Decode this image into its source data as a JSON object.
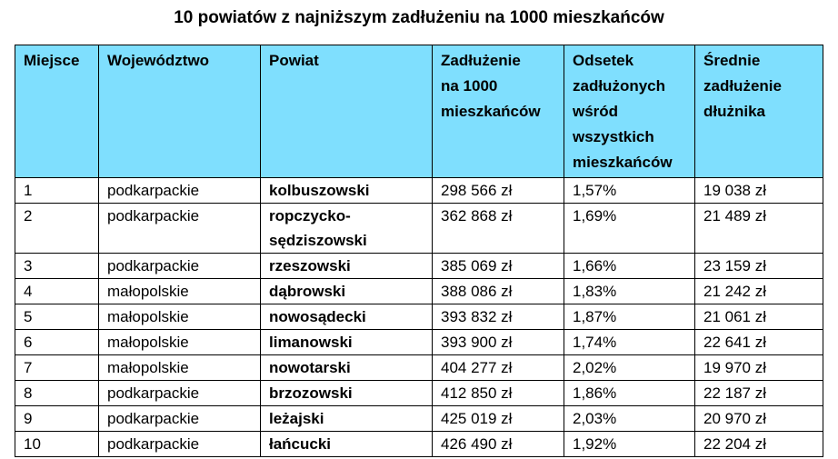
{
  "title": "10 powiatów z najniższym zadłużeniu na 1000 mieszkańców",
  "colors": {
    "header_bg": "#7fdffe",
    "border": "#000000"
  },
  "headers": {
    "place": "Miejsce",
    "voivodeship": "Województwo",
    "county": "Powiat",
    "debt_per_1000": [
      "Zadłużenie",
      "na 1000",
      "mieszkańców"
    ],
    "share_indebted": [
      "Odsetek",
      "zadłużonych",
      "wśród",
      "wszystkich",
      "mieszkańców"
    ],
    "avg_debt": [
      "Średnie",
      "zadłużenie",
      "dłużnika"
    ]
  },
  "rows": [
    {
      "place": "1",
      "voivodeship": "podkarpackie",
      "county": [
        "kolbuszowski"
      ],
      "debt_per_1000": "298 566 zł",
      "share_indebted": "1,57%",
      "avg_debt": "19 038 zł"
    },
    {
      "place": "2",
      "voivodeship": "podkarpackie",
      "county": [
        "ropczycko-",
        "sędziszowski"
      ],
      "debt_per_1000": "362 868 zł",
      "share_indebted": "1,69%",
      "avg_debt": "21 489 zł"
    },
    {
      "place": "3",
      "voivodeship": "podkarpackie",
      "county": [
        "rzeszowski"
      ],
      "debt_per_1000": "385 069 zł",
      "share_indebted": "1,66%",
      "avg_debt": "23 159 zł"
    },
    {
      "place": "4",
      "voivodeship": "małopolskie",
      "county": [
        "dąbrowski"
      ],
      "debt_per_1000": "388 086 zł",
      "share_indebted": "1,83%",
      "avg_debt": "21 242 zł"
    },
    {
      "place": "5",
      "voivodeship": "małopolskie",
      "county": [
        "nowosądecki"
      ],
      "debt_per_1000": "393 832 zł",
      "share_indebted": "1,87%",
      "avg_debt": "21 061 zł"
    },
    {
      "place": "6",
      "voivodeship": "małopolskie",
      "county": [
        "limanowski"
      ],
      "debt_per_1000": "393 900 zł",
      "share_indebted": "1,74%",
      "avg_debt": "22 641 zł"
    },
    {
      "place": "7",
      "voivodeship": "małopolskie",
      "county": [
        "nowotarski"
      ],
      "debt_per_1000": "404 277 zł",
      "share_indebted": "2,02%",
      "avg_debt": "19 970 zł"
    },
    {
      "place": "8",
      "voivodeship": "podkarpackie",
      "county": [
        "brzozowski"
      ],
      "debt_per_1000": "412 850 zł",
      "share_indebted": "1,86%",
      "avg_debt": "22 187 zł"
    },
    {
      "place": "9",
      "voivodeship": "podkarpackie",
      "county": [
        "leżajski"
      ],
      "debt_per_1000": "425 019 zł",
      "share_indebted": "2,03%",
      "avg_debt": "20 970 zł"
    },
    {
      "place": "10",
      "voivodeship": "podkarpackie",
      "county": [
        "łańcucki"
      ],
      "debt_per_1000": "426 490 zł",
      "share_indebted": "1,92%",
      "avg_debt": "22 204 zł"
    }
  ]
}
